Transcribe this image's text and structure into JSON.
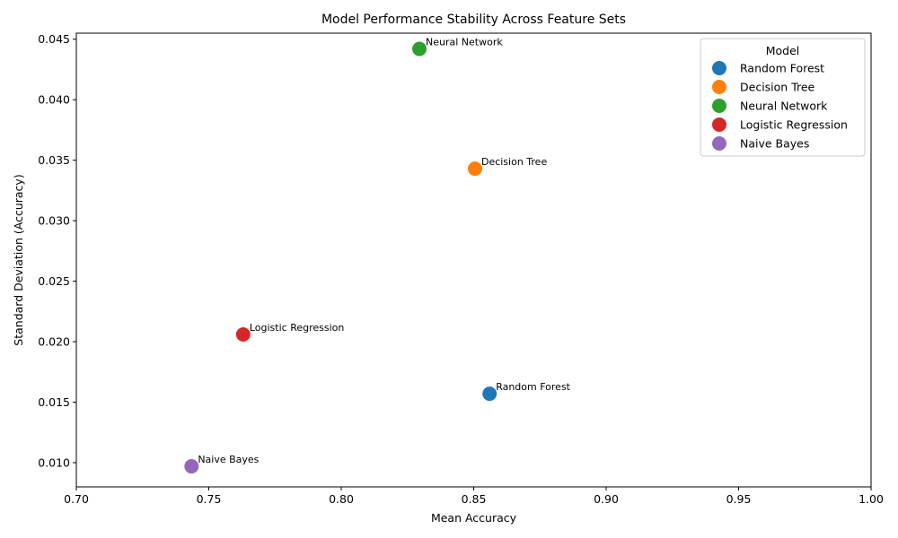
{
  "chart_data": {
    "type": "scatter",
    "title": "Model Performance Stability Across Feature Sets",
    "xlabel": "Mean Accuracy",
    "ylabel": "Standard Deviation (Accuracy)",
    "xlim": [
      0.7,
      1.0
    ],
    "ylim": [
      0.008,
      0.0455
    ],
    "xticks": [
      "0.70",
      "0.75",
      "0.80",
      "0.85",
      "0.90",
      "0.95",
      "1.00"
    ],
    "yticks": [
      "0.010",
      "0.015",
      "0.020",
      "0.025",
      "0.030",
      "0.035",
      "0.040",
      "0.045"
    ],
    "grid": false,
    "legend": {
      "title": "Model",
      "position": "top-right"
    },
    "series": [
      {
        "name": "Random Forest",
        "x": 0.856,
        "y": 0.0157,
        "color": "#1f77b4"
      },
      {
        "name": "Decision Tree",
        "x": 0.8505,
        "y": 0.0343,
        "color": "#ff7f0e"
      },
      {
        "name": "Neural Network",
        "x": 0.8295,
        "y": 0.0442,
        "color": "#2ca02c"
      },
      {
        "name": "Logistic Regression",
        "x": 0.763,
        "y": 0.0206,
        "color": "#d62728"
      },
      {
        "name": "Naive Bayes",
        "x": 0.7435,
        "y": 0.0097,
        "color": "#9467bd"
      }
    ]
  }
}
